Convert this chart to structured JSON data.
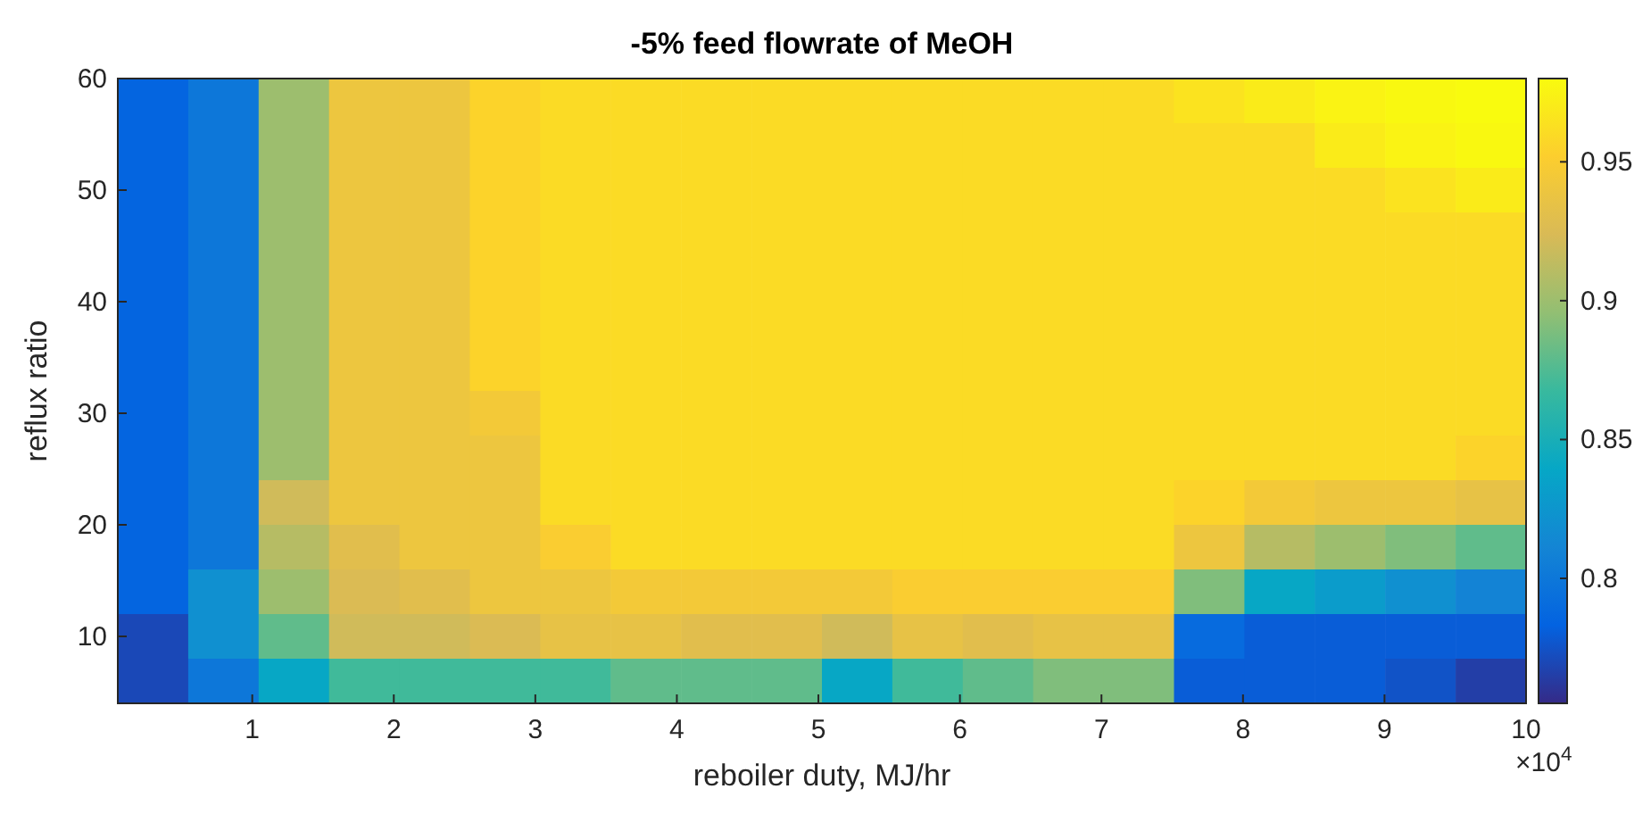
{
  "chart_data": {
    "type": "heatmap",
    "title": "-5% feed flowrate of MeOH",
    "xlabel": "reboiler duty, MJ/hr",
    "ylabel": "reflux ratio",
    "annotations": [
      "×10$^{4}$"
    ],
    "xlim": [
      0.05,
      10
    ],
    "ylim": [
      4,
      60
    ],
    "xticks": [
      1,
      2,
      3,
      4,
      5,
      6,
      7,
      8,
      9,
      10
    ],
    "yticks": [
      10,
      20,
      30,
      40,
      50,
      60
    ],
    "clim": [
      0.755,
      0.98
    ],
    "cticks": [
      0.8,
      0.85,
      0.9,
      0.95
    ],
    "cells": [
      [
        0.785,
        0.8,
        0.9,
        0.94,
        0.94,
        0.955,
        0.96,
        0.96,
        0.96,
        0.96,
        0.96,
        0.96,
        0.96,
        0.96,
        0.96,
        0.965,
        0.97,
        0.975,
        0.978,
        0.98
      ],
      [
        0.785,
        0.8,
        0.9,
        0.94,
        0.94,
        0.955,
        0.96,
        0.96,
        0.96,
        0.96,
        0.96,
        0.96,
        0.96,
        0.96,
        0.96,
        0.96,
        0.96,
        0.97,
        0.975,
        0.978
      ],
      [
        0.785,
        0.8,
        0.9,
        0.94,
        0.94,
        0.955,
        0.96,
        0.96,
        0.96,
        0.96,
        0.96,
        0.96,
        0.96,
        0.96,
        0.96,
        0.96,
        0.96,
        0.96,
        0.965,
        0.97
      ],
      [
        0.785,
        0.8,
        0.9,
        0.94,
        0.94,
        0.955,
        0.96,
        0.96,
        0.96,
        0.96,
        0.96,
        0.96,
        0.96,
        0.96,
        0.96,
        0.96,
        0.96,
        0.96,
        0.96,
        0.96
      ],
      [
        0.785,
        0.8,
        0.9,
        0.94,
        0.94,
        0.955,
        0.96,
        0.96,
        0.96,
        0.96,
        0.96,
        0.96,
        0.96,
        0.96,
        0.96,
        0.96,
        0.96,
        0.96,
        0.96,
        0.96
      ],
      [
        0.785,
        0.8,
        0.9,
        0.94,
        0.94,
        0.955,
        0.96,
        0.96,
        0.96,
        0.96,
        0.96,
        0.96,
        0.96,
        0.96,
        0.96,
        0.96,
        0.96,
        0.96,
        0.96,
        0.96
      ],
      [
        0.785,
        0.8,
        0.9,
        0.94,
        0.94,
        0.955,
        0.96,
        0.96,
        0.96,
        0.96,
        0.96,
        0.96,
        0.96,
        0.96,
        0.96,
        0.96,
        0.96,
        0.96,
        0.96,
        0.96
      ],
      [
        0.785,
        0.8,
        0.9,
        0.94,
        0.94,
        0.945,
        0.96,
        0.96,
        0.96,
        0.96,
        0.96,
        0.96,
        0.96,
        0.96,
        0.96,
        0.96,
        0.96,
        0.96,
        0.96,
        0.96
      ],
      [
        0.785,
        0.8,
        0.9,
        0.94,
        0.94,
        0.94,
        0.96,
        0.96,
        0.96,
        0.96,
        0.96,
        0.96,
        0.96,
        0.96,
        0.96,
        0.96,
        0.96,
        0.96,
        0.96,
        0.955
      ],
      [
        0.785,
        0.8,
        0.92,
        0.94,
        0.94,
        0.94,
        0.96,
        0.96,
        0.96,
        0.96,
        0.96,
        0.96,
        0.96,
        0.96,
        0.96,
        0.955,
        0.945,
        0.94,
        0.94,
        0.935
      ],
      [
        0.785,
        0.8,
        0.91,
        0.93,
        0.94,
        0.94,
        0.95,
        0.96,
        0.96,
        0.96,
        0.96,
        0.96,
        0.96,
        0.96,
        0.96,
        0.94,
        0.91,
        0.9,
        0.89,
        0.88
      ],
      [
        0.785,
        0.82,
        0.9,
        0.925,
        0.93,
        0.94,
        0.94,
        0.945,
        0.945,
        0.945,
        0.945,
        0.95,
        0.95,
        0.95,
        0.95,
        0.89,
        0.84,
        0.83,
        0.82,
        0.81
      ],
      [
        0.77,
        0.82,
        0.88,
        0.92,
        0.92,
        0.925,
        0.935,
        0.935,
        0.93,
        0.93,
        0.92,
        0.935,
        0.93,
        0.935,
        0.935,
        0.79,
        0.78,
        0.78,
        0.78,
        0.78
      ],
      [
        0.77,
        0.8,
        0.84,
        0.87,
        0.87,
        0.87,
        0.87,
        0.88,
        0.88,
        0.88,
        0.84,
        0.87,
        0.88,
        0.89,
        0.89,
        0.78,
        0.78,
        0.78,
        0.775,
        0.765
      ]
    ]
  }
}
